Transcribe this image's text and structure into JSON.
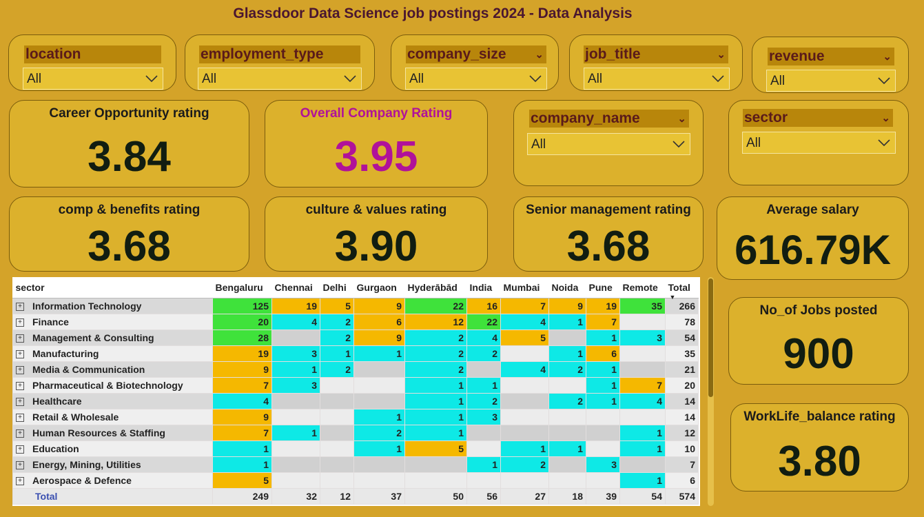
{
  "title": "Glassdoor Data Science job postings 2024 - Data Analysis",
  "slicers": {
    "location": {
      "label": "location",
      "value": "All"
    },
    "employment_type": {
      "label": "employment_type",
      "value": "All"
    },
    "company_size": {
      "label": "company_size",
      "value": "All"
    },
    "job_title": {
      "label": "job_title",
      "value": "All"
    },
    "revenue": {
      "label": "revenue",
      "value": "All"
    },
    "company_name": {
      "label": "company_name",
      "value": "All"
    },
    "sector": {
      "label": "sector",
      "value": "All"
    }
  },
  "kpis": {
    "career": {
      "label": "Career Opportunity rating",
      "value": "3.84"
    },
    "overall": {
      "label": "Overall Company Rating",
      "value": "3.95"
    },
    "comp": {
      "label": "comp & benefits rating",
      "value": "3.68"
    },
    "culture": {
      "label": "culture & values rating",
      "value": "3.90"
    },
    "senior": {
      "label": "Senior management rating",
      "value": "3.68"
    },
    "salary": {
      "label": "Average salary",
      "value": "616.79K"
    },
    "jobs": {
      "label": "No_of Jobs posted",
      "value": "900"
    },
    "worklife": {
      "label": "WorkLife_balance rating",
      "value": "3.80"
    }
  },
  "colors": {
    "green": "#3fe23b",
    "orange": "#f5b800",
    "cyan": "#0ee9e6",
    "grey": "#d0d0d0",
    "light": "#ececec",
    "overall_accent": "#b0129a"
  },
  "matrix": {
    "row_header": "sector",
    "columns": [
      "Bengaluru",
      "Chennai",
      "Delhi",
      "Gurgaon",
      "Hyderābād",
      "India",
      "Mumbai",
      "Noida",
      "Pune",
      "Remote",
      "Total"
    ],
    "sort_indicator": "▼",
    "rows": [
      {
        "sector": "Information Technology",
        "values": [
          "125",
          "19",
          "5",
          "9",
          "22",
          "16",
          "7",
          "9",
          "19",
          "35",
          "266"
        ],
        "colors": [
          "green",
          "orange",
          "orange",
          "orange",
          "green",
          "orange",
          "orange",
          "orange",
          "orange",
          "green"
        ]
      },
      {
        "sector": "Finance",
        "values": [
          "20",
          "4",
          "2",
          "6",
          "12",
          "22",
          "4",
          "1",
          "7",
          "",
          "78"
        ],
        "colors": [
          "green",
          "cyan",
          "cyan",
          "orange",
          "orange",
          "green",
          "cyan",
          "cyan",
          "orange",
          "light"
        ]
      },
      {
        "sector": "Management & Consulting",
        "values": [
          "28",
          "",
          "2",
          "9",
          "2",
          "4",
          "5",
          "",
          "1",
          "3",
          "54"
        ],
        "colors": [
          "green",
          "grey",
          "cyan",
          "orange",
          "cyan",
          "cyan",
          "orange",
          "grey",
          "cyan",
          "cyan"
        ]
      },
      {
        "sector": "Manufacturing",
        "values": [
          "19",
          "3",
          "1",
          "1",
          "2",
          "2",
          "",
          "1",
          "6",
          "",
          "35"
        ],
        "colors": [
          "orange",
          "cyan",
          "cyan",
          "cyan",
          "cyan",
          "cyan",
          "light",
          "cyan",
          "orange",
          "light"
        ]
      },
      {
        "sector": "Media & Communication",
        "values": [
          "9",
          "1",
          "2",
          "",
          "2",
          "",
          "4",
          "2",
          "1",
          "",
          "21"
        ],
        "colors": [
          "orange",
          "cyan",
          "cyan",
          "grey",
          "cyan",
          "grey",
          "cyan",
          "cyan",
          "cyan",
          "grey"
        ]
      },
      {
        "sector": "Pharmaceutical & Biotechnology",
        "values": [
          "7",
          "3",
          "",
          "",
          "1",
          "1",
          "",
          "",
          "1",
          "7",
          "20"
        ],
        "colors": [
          "orange",
          "cyan",
          "light",
          "light",
          "cyan",
          "cyan",
          "light",
          "light",
          "cyan",
          "orange"
        ]
      },
      {
        "sector": "Healthcare",
        "values": [
          "4",
          "",
          "",
          "",
          "1",
          "2",
          "",
          "2",
          "1",
          "4",
          "14"
        ],
        "colors": [
          "cyan",
          "grey",
          "grey",
          "grey",
          "cyan",
          "cyan",
          "grey",
          "cyan",
          "cyan",
          "cyan"
        ]
      },
      {
        "sector": "Retail & Wholesale",
        "values": [
          "9",
          "",
          "",
          "1",
          "1",
          "3",
          "",
          "",
          "",
          "",
          "14"
        ],
        "colors": [
          "orange",
          "light",
          "light",
          "cyan",
          "cyan",
          "cyan",
          "light",
          "light",
          "light",
          "light"
        ]
      },
      {
        "sector": "Human Resources & Staffing",
        "values": [
          "7",
          "1",
          "",
          "2",
          "1",
          "",
          "",
          "",
          "",
          "1",
          "12"
        ],
        "colors": [
          "orange",
          "cyan",
          "grey",
          "cyan",
          "cyan",
          "grey",
          "grey",
          "grey",
          "grey",
          "cyan"
        ]
      },
      {
        "sector": "Education",
        "values": [
          "1",
          "",
          "",
          "1",
          "5",
          "",
          "1",
          "1",
          "",
          "1",
          "10"
        ],
        "colors": [
          "cyan",
          "light",
          "light",
          "cyan",
          "orange",
          "light",
          "cyan",
          "cyan",
          "light",
          "cyan"
        ]
      },
      {
        "sector": "Energy, Mining, Utilities",
        "values": [
          "1",
          "",
          "",
          "",
          "",
          "1",
          "2",
          "",
          "3",
          "",
          "7"
        ],
        "colors": [
          "cyan",
          "grey",
          "grey",
          "grey",
          "grey",
          "cyan",
          "cyan",
          "grey",
          "cyan",
          "grey"
        ]
      },
      {
        "sector": "Aerospace & Defence",
        "values": [
          "5",
          "",
          "",
          "",
          "",
          "",
          "",
          "",
          "",
          "1",
          "6"
        ],
        "colors": [
          "orange",
          "light",
          "light",
          "light",
          "light",
          "light",
          "light",
          "light",
          "light",
          "cyan"
        ]
      }
    ],
    "total": {
      "label": "Total",
      "values": [
        "249",
        "32",
        "12",
        "37",
        "50",
        "56",
        "27",
        "18",
        "39",
        "54",
        "574"
      ]
    }
  }
}
